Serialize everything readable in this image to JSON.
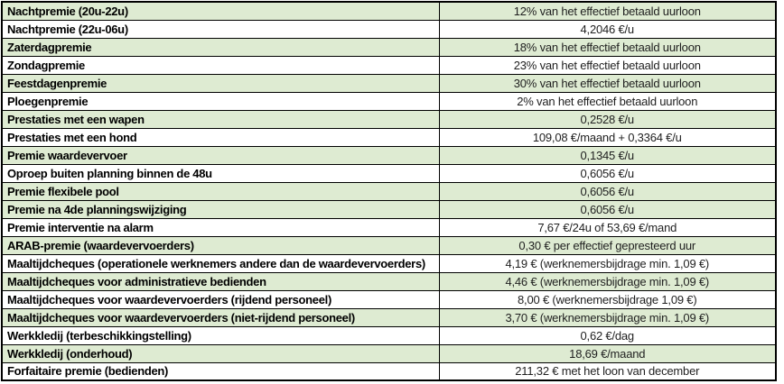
{
  "colors": {
    "row_shaded_green": "#deebd2",
    "row_plain_white": "#ffffff",
    "border_black": "#000000",
    "label_text": "#000000",
    "value_text": "#1f1f1f"
  },
  "table": {
    "rows": [
      {
        "label": "Nachtpremie (20u-22u)",
        "value": "12% van het effectief betaald uurloon",
        "shaded": true
      },
      {
        "label": "Nachtpremie (22u-06u)",
        "value": "4,2046 €/u",
        "shaded": false
      },
      {
        "label": "Zaterdagpremie",
        "value": "18% van het effectief betaald uurloon",
        "shaded": true
      },
      {
        "label": "Zondagpremie",
        "value": "23% van het effectief betaald uurloon",
        "shaded": false
      },
      {
        "label": "Feestdagenpremie",
        "value": "30% van het effectief betaald uurloon",
        "shaded": true
      },
      {
        "label": "Ploegenpremie",
        "value": "2% van het effectief betaald uurloon",
        "shaded": false
      },
      {
        "label": "Prestaties met een wapen",
        "value": "0,2528 €/u",
        "shaded": true
      },
      {
        "label": "Prestaties met een hond",
        "value": "109,08 €/maand + 0,3364 €/u",
        "shaded": false
      },
      {
        "label": "Premie waardevervoer",
        "value": "0,1345 €/u",
        "shaded": true
      },
      {
        "label": "Oproep buiten planning binnen de 48u",
        "value": "0,6056 €/u",
        "shaded": false
      },
      {
        "label": "Premie flexibele pool",
        "value": "0,6056 €/u",
        "shaded": true
      },
      {
        "label": "Premie na 4de planningswijziging",
        "value": "0,6056 €/u",
        "shaded": true
      },
      {
        "label": "Premie interventie na alarm",
        "value": "7,67 €/24u of 53,69 €/mand",
        "shaded": false
      },
      {
        "label": "ARAB-premie (waardevervoerders)",
        "value": "0,30 € per effectief gepresteerd uur",
        "shaded": true
      },
      {
        "label": "Maaltijdcheques (operationele werknemers andere dan de waardevervoerders)",
        "value": "4,19 € (werknemersbijdrage min. 1,09 €)",
        "shaded": false
      },
      {
        "label": "Maaltijdcheques voor administratieve bedienden",
        "value": "4,46 € (werknemersbijdrage min. 1,09 €)",
        "shaded": true
      },
      {
        "label": "Maaltijdcheques voor waardevervoerders (rijdend personeel)",
        "value": "8,00 € (werknemersbijdrage 1,09 €)",
        "shaded": false
      },
      {
        "label": "Maaltijdcheques voor waardevervoerders (niet-rijdend personeel)",
        "value": "3,70 € (werknemersbijdrage min. 1,09 €)",
        "shaded": true
      },
      {
        "label": "Werkkledij (terbeschikkingstelling)",
        "value": "0,62 €/dag",
        "shaded": false
      },
      {
        "label": "Werkkledij (onderhoud)",
        "value": "18,69 €/maand",
        "shaded": true
      },
      {
        "label": "Forfaitaire premie (bedienden)",
        "value": "211,32 € met het loon van december",
        "shaded": false
      }
    ]
  }
}
